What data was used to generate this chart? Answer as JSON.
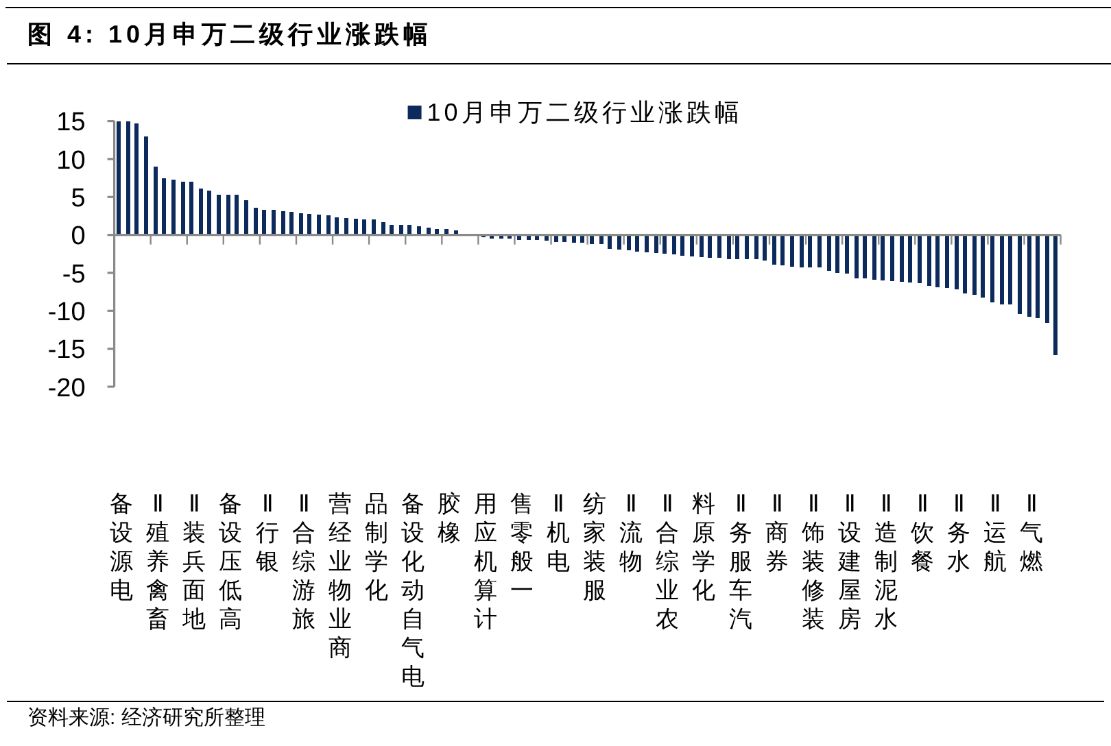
{
  "chart_data": {
    "type": "bar",
    "title": "图 4: 10月申万二级行业涨跌幅",
    "categories": [
      "电源设备",
      null,
      null,
      null,
      "畜禽养殖Ⅱ",
      null,
      null,
      null,
      "地面兵装Ⅱ",
      null,
      null,
      null,
      "高低压设备",
      null,
      null,
      null,
      "银行Ⅱ",
      null,
      null,
      null,
      "旅游综合Ⅱ",
      null,
      null,
      null,
      "商业物业经营",
      null,
      null,
      null,
      "化学制品",
      null,
      null,
      null,
      "电气自动化设备",
      null,
      null,
      null,
      "橡胶",
      null,
      null,
      null,
      "计算机应用",
      null,
      null,
      null,
      "一般零售",
      null,
      null,
      null,
      "电机Ⅱ",
      null,
      null,
      null,
      "服装家纺",
      null,
      null,
      null,
      "物流Ⅱ",
      null,
      null,
      null,
      "农业综合Ⅱ",
      null,
      null,
      null,
      "化学原料",
      null,
      null,
      null,
      "汽车服务Ⅱ",
      null,
      null,
      null,
      "券商Ⅱ",
      null,
      null,
      null,
      "装修装饰Ⅱ",
      null,
      null,
      null,
      "房屋建设Ⅱ",
      null,
      null,
      null,
      "水泥制造Ⅱ",
      null,
      null,
      null,
      "餐饮Ⅱ",
      null,
      null,
      null,
      "水务Ⅱ",
      null,
      null,
      null,
      "航运Ⅱ",
      null,
      null,
      null,
      "燃气Ⅱ",
      null,
      null,
      null
    ],
    "series": [
      {
        "name": "10月申万二级行业涨跌幅",
        "color": "#0c2a5b",
        "values": [
          15,
          15,
          14.7,
          13.0,
          9.0,
          7.5,
          7.3,
          7.0,
          7.0,
          6.1,
          5.8,
          5.3,
          5.3,
          5.3,
          4.6,
          3.6,
          3.3,
          3.3,
          3.1,
          3.0,
          2.9,
          2.8,
          2.7,
          2.6,
          2.3,
          2.2,
          2.1,
          2.0,
          2.0,
          1.7,
          1.3,
          1.3,
          1.3,
          1.1,
          1.0,
          0.8,
          0.8,
          0.6,
          null,
          null,
          -0.3,
          -0.5,
          -0.5,
          -0.5,
          -0.7,
          -0.7,
          -0.7,
          -0.8,
          -0.9,
          -0.9,
          -1.0,
          -1.0,
          -1.2,
          -1.2,
          -1.8,
          -1.9,
          -2.0,
          -2.2,
          -2.3,
          -2.4,
          -2.5,
          -2.6,
          -2.7,
          -2.8,
          -2.9,
          -3.0,
          -3.0,
          -3.2,
          -3.2,
          -3.2,
          -3.2,
          -3.4,
          -3.9,
          -4.0,
          -4.2,
          -4.3,
          -4.3,
          -4.3,
          -4.7,
          -5.0,
          -5.1,
          -5.7,
          -5.7,
          -5.9,
          -6.0,
          -6.1,
          -6.2,
          -6.3,
          -6.4,
          -6.7,
          -6.9,
          -7.0,
          -7.2,
          -7.7,
          -7.9,
          -8.3,
          -8.9,
          -9.2,
          -9.2,
          -10.4,
          -10.8,
          -11.0,
          -11.6,
          -15.8
        ]
      }
    ],
    "ylim": [
      -20,
      15
    ],
    "yticks": [
      -20,
      -15,
      -10,
      -5,
      0,
      5,
      10,
      15
    ],
    "legend": "top",
    "annotations": [
      "资料来源: 经济研究所整理"
    ]
  }
}
